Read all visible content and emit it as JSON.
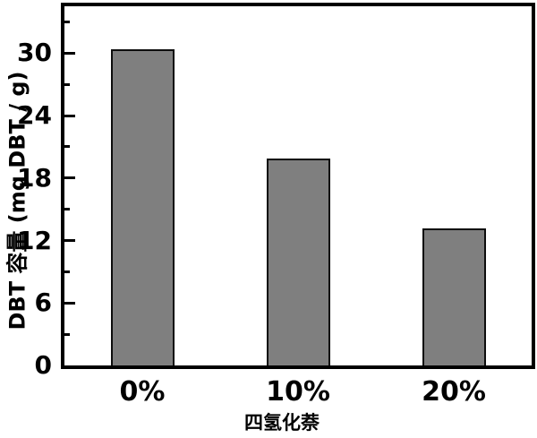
{
  "chart_data": {
    "type": "bar",
    "categories": [
      "0%",
      "10%",
      "20%"
    ],
    "values": [
      30.4,
      19.9,
      13.2
    ],
    "xlabel": "四氢化萘",
    "ylabel": "DBT 容量 (mg DBT / g)",
    "ylim": [
      0,
      34.5
    ],
    "yticks": [
      0,
      6,
      12,
      18,
      24,
      30
    ],
    "minor_yticks": [
      3,
      9,
      15,
      21,
      27,
      33
    ],
    "grid": false,
    "legend_position": "none",
    "bar_color": "#7f7f7f",
    "bar_border_color": "#0d0d0d",
    "axis_color": "#000000",
    "background_color": "#ffffff"
  }
}
